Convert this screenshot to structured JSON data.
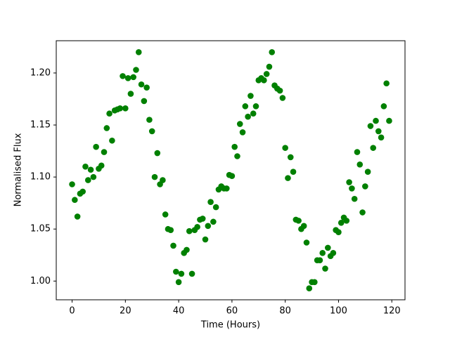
{
  "chart_data": {
    "type": "scatter",
    "x_label": "Time (Hours)",
    "y_label": "Normalised Flux",
    "x": [
      0,
      1,
      2,
      3,
      4,
      5,
      6,
      7,
      8,
      9,
      10,
      11,
      12,
      13,
      14,
      15,
      16,
      17,
      18,
      19,
      20,
      21,
      22,
      23,
      24,
      25,
      26,
      27,
      28,
      29,
      30,
      31,
      32,
      33,
      34,
      35,
      36,
      37,
      38,
      39,
      40,
      41,
      42,
      43,
      44,
      45,
      46,
      47,
      48,
      49,
      50,
      51,
      52,
      53,
      54,
      55,
      56,
      57,
      58,
      59,
      60,
      61,
      62,
      63,
      64,
      65,
      66,
      67,
      68,
      69,
      70,
      71,
      72,
      73,
      74,
      75,
      76,
      77,
      78,
      79,
      80,
      81,
      82,
      83,
      84,
      85,
      86,
      87,
      88,
      89,
      90,
      91,
      92,
      93,
      94,
      95,
      96,
      97,
      98,
      99,
      100,
      101,
      102,
      103,
      104,
      105,
      106,
      107,
      108,
      109,
      110,
      111,
      112,
      113,
      114,
      115,
      116,
      117,
      118,
      119
    ],
    "values": [
      1.093,
      1.078,
      1.062,
      1.084,
      1.086,
      1.11,
      1.097,
      1.107,
      1.1,
      1.129,
      1.108,
      1.111,
      1.124,
      1.147,
      1.161,
      1.135,
      1.164,
      1.165,
      1.166,
      1.197,
      1.166,
      1.195,
      1.18,
      1.196,
      1.203,
      1.22,
      1.189,
      1.173,
      1.186,
      1.155,
      1.144,
      1.1,
      1.123,
      1.093,
      1.097,
      1.064,
      1.05,
      1.049,
      1.034,
      1.009,
      0.999,
      1.007,
      1.027,
      1.03,
      1.048,
      1.007,
      1.049,
      1.052,
      1.059,
      1.06,
      1.04,
      1.053,
      1.076,
      1.057,
      1.071,
      1.088,
      1.091,
      1.089,
      1.089,
      1.102,
      1.101,
      1.129,
      1.12,
      1.151,
      1.143,
      1.168,
      1.158,
      1.178,
      1.161,
      1.168,
      1.193,
      1.195,
      1.193,
      1.199,
      1.206,
      1.22,
      1.188,
      1.185,
      1.183,
      1.176,
      1.128,
      1.099,
      1.119,
      1.105,
      1.059,
      1.058,
      1.05,
      1.053,
      1.037,
      0.993,
      0.999,
      0.999,
      1.02,
      1.02,
      1.027,
      1.012,
      1.032,
      1.024,
      1.027,
      1.049,
      1.047,
      1.056,
      1.061,
      1.058,
      1.095,
      1.089,
      1.079,
      1.124,
      1.112,
      1.066,
      1.091,
      1.105,
      1.149,
      1.128,
      1.154,
      1.144,
      1.138,
      1.168,
      1.19,
      1.154
    ],
    "color": "#008000",
    "xlim": [
      -5.95,
      124.95
    ],
    "xticks": [
      0,
      20,
      40,
      60,
      80,
      100,
      120
    ],
    "ylim": [
      0.982,
      1.231
    ],
    "yticks": [
      {
        "value": 1,
        "label": "1.00"
      },
      1.05,
      {
        "value": 1.1,
        "label": "1.10"
      },
      1.15,
      {
        "value": 1.2,
        "label": "1.20"
      }
    ],
    "grid": false
  }
}
